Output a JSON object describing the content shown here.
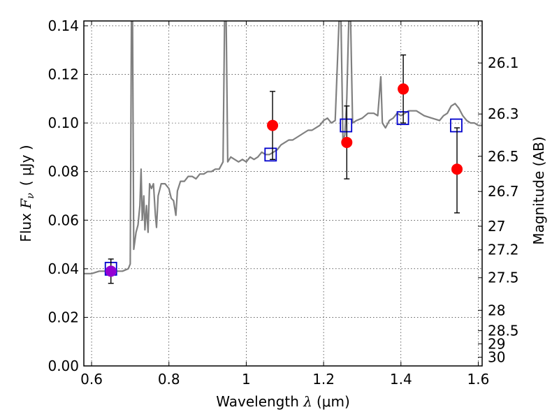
{
  "chart_data": {
    "type": "scatter",
    "xlabel": {
      "prefix": "Wavelength",
      "symbol": "λ",
      "unit": "(μm)"
    },
    "ylabel": {
      "prefix": "Flux",
      "symbol": "F",
      "subscript": "ν",
      "unit": "( μJy )"
    },
    "ylabel_right": "Magnitude (AB)",
    "xlim": [
      0.58,
      1.61
    ],
    "ylim": [
      0.0,
      0.142
    ],
    "grid": true,
    "x_ticks": [
      {
        "value": 0.6,
        "label": "0.6"
      },
      {
        "value": 0.8,
        "label": "0.8"
      },
      {
        "value": 1.0,
        "label": "1"
      },
      {
        "value": 1.2,
        "label": "1.2"
      },
      {
        "value": 1.4,
        "label": "1.4"
      },
      {
        "value": 1.6,
        "label": "1.6"
      }
    ],
    "y_ticks": [
      {
        "value": 0.0,
        "label": "0.00"
      },
      {
        "value": 0.02,
        "label": "0.02"
      },
      {
        "value": 0.04,
        "label": "0.04"
      },
      {
        "value": 0.06,
        "label": "0.06"
      },
      {
        "value": 0.08,
        "label": "0.08"
      },
      {
        "value": 0.1,
        "label": "0.10"
      },
      {
        "value": 0.12,
        "label": "0.12"
      },
      {
        "value": 0.14,
        "label": "0.14"
      }
    ],
    "right_ticks": [
      {
        "flux": 0.1247,
        "label": "26.1"
      },
      {
        "flux": 0.1037,
        "label": "26.3"
      },
      {
        "flux": 0.0863,
        "label": "26.5"
      },
      {
        "flux": 0.0718,
        "label": "26.7"
      },
      {
        "flux": 0.0575,
        "label": "27"
      },
      {
        "flux": 0.0478,
        "label": "27.2"
      },
      {
        "flux": 0.0363,
        "label": "27.5"
      },
      {
        "flux": 0.0229,
        "label": "28"
      },
      {
        "flux": 0.0145,
        "label": "28.5"
      },
      {
        "flux": 0.0091,
        "label": "29"
      },
      {
        "flux": 0.0036,
        "label": "30"
      }
    ],
    "series": [
      {
        "kind": "spectrum",
        "color": "#808080",
        "points": [
          [
            0.58,
            0.038
          ],
          [
            0.6,
            0.038
          ],
          [
            0.62,
            0.039
          ],
          [
            0.64,
            0.039
          ],
          [
            0.66,
            0.039
          ],
          [
            0.68,
            0.039
          ],
          [
            0.695,
            0.04
          ],
          [
            0.7,
            0.042
          ],
          [
            0.703,
            0.142
          ],
          [
            0.706,
            0.142
          ],
          [
            0.709,
            0.048
          ],
          [
            0.715,
            0.055
          ],
          [
            0.72,
            0.058
          ],
          [
            0.725,
            0.066
          ],
          [
            0.728,
            0.081
          ],
          [
            0.731,
            0.06
          ],
          [
            0.735,
            0.07
          ],
          [
            0.738,
            0.056
          ],
          [
            0.742,
            0.066
          ],
          [
            0.746,
            0.055
          ],
          [
            0.75,
            0.075
          ],
          [
            0.755,
            0.073
          ],
          [
            0.76,
            0.075
          ],
          [
            0.765,
            0.062
          ],
          [
            0.768,
            0.057
          ],
          [
            0.772,
            0.07
          ],
          [
            0.78,
            0.075
          ],
          [
            0.79,
            0.075
          ],
          [
            0.8,
            0.073
          ],
          [
            0.806,
            0.069
          ],
          [
            0.812,
            0.068
          ],
          [
            0.818,
            0.062
          ],
          [
            0.822,
            0.072
          ],
          [
            0.83,
            0.076
          ],
          [
            0.84,
            0.076
          ],
          [
            0.85,
            0.078
          ],
          [
            0.86,
            0.078
          ],
          [
            0.87,
            0.077
          ],
          [
            0.88,
            0.079
          ],
          [
            0.89,
            0.079
          ],
          [
            0.9,
            0.08
          ],
          [
            0.91,
            0.08
          ],
          [
            0.92,
            0.081
          ],
          [
            0.93,
            0.081
          ],
          [
            0.94,
            0.084
          ],
          [
            0.944,
            0.142
          ],
          [
            0.948,
            0.142
          ],
          [
            0.952,
            0.084
          ],
          [
            0.96,
            0.086
          ],
          [
            0.97,
            0.085
          ],
          [
            0.98,
            0.084
          ],
          [
            0.99,
            0.085
          ],
          [
            1.0,
            0.084
          ],
          [
            1.01,
            0.086
          ],
          [
            1.02,
            0.085
          ],
          [
            1.03,
            0.086
          ],
          [
            1.04,
            0.088
          ],
          [
            1.05,
            0.087
          ],
          [
            1.06,
            0.087
          ],
          [
            1.07,
            0.088
          ],
          [
            1.08,
            0.089
          ],
          [
            1.09,
            0.091
          ],
          [
            1.1,
            0.092
          ],
          [
            1.11,
            0.093
          ],
          [
            1.12,
            0.093
          ],
          [
            1.13,
            0.094
          ],
          [
            1.14,
            0.095
          ],
          [
            1.15,
            0.096
          ],
          [
            1.16,
            0.097
          ],
          [
            1.17,
            0.097
          ],
          [
            1.18,
            0.098
          ],
          [
            1.19,
            0.099
          ],
          [
            1.2,
            0.101
          ],
          [
            1.21,
            0.102
          ],
          [
            1.22,
            0.1
          ],
          [
            1.23,
            0.101
          ],
          [
            1.24,
            0.142
          ],
          [
            1.245,
            0.142
          ],
          [
            1.25,
            0.093
          ],
          [
            1.255,
            0.095
          ],
          [
            1.26,
            0.11
          ],
          [
            1.265,
            0.142
          ],
          [
            1.27,
            0.142
          ],
          [
            1.275,
            0.1
          ],
          [
            1.285,
            0.101
          ],
          [
            1.3,
            0.102
          ],
          [
            1.315,
            0.104
          ],
          [
            1.33,
            0.104
          ],
          [
            1.34,
            0.103
          ],
          [
            1.348,
            0.119
          ],
          [
            1.352,
            0.1
          ],
          [
            1.36,
            0.098
          ],
          [
            1.37,
            0.101
          ],
          [
            1.38,
            0.102
          ],
          [
            1.39,
            0.104
          ],
          [
            1.4,
            0.103
          ],
          [
            1.42,
            0.105
          ],
          [
            1.44,
            0.105
          ],
          [
            1.46,
            0.103
          ],
          [
            1.48,
            0.102
          ],
          [
            1.5,
            0.101
          ],
          [
            1.51,
            0.103
          ],
          [
            1.52,
            0.104
          ],
          [
            1.53,
            0.107
          ],
          [
            1.54,
            0.108
          ],
          [
            1.55,
            0.106
          ],
          [
            1.56,
            0.103
          ],
          [
            1.57,
            0.101
          ],
          [
            1.58,
            0.1
          ],
          [
            1.59,
            0.1
          ],
          [
            1.6,
            0.099
          ],
          [
            1.61,
            0.099
          ]
        ]
      },
      {
        "kind": "squares",
        "color": "#0000cc",
        "points": [
          [
            0.65,
            0.04
          ],
          [
            1.063,
            0.087
          ],
          [
            1.258,
            0.099
          ],
          [
            1.405,
            0.102
          ],
          [
            1.543,
            0.099
          ]
        ]
      },
      {
        "kind": "points",
        "color": "#ff0000",
        "points": [
          {
            "x": 1.068,
            "y": 0.099,
            "lo": 0.085,
            "hi": 0.113
          },
          {
            "x": 1.26,
            "y": 0.092,
            "lo": 0.077,
            "hi": 0.107
          },
          {
            "x": 1.406,
            "y": 0.114,
            "lo": 0.1,
            "hi": 0.128
          },
          {
            "x": 1.545,
            "y": 0.081,
            "lo": 0.063,
            "hi": 0.098
          }
        ]
      },
      {
        "kind": "points",
        "color": "#9400d3",
        "points": [
          {
            "x": 0.65,
            "y": 0.039,
            "lo": 0.034,
            "hi": 0.044
          }
        ]
      }
    ]
  }
}
